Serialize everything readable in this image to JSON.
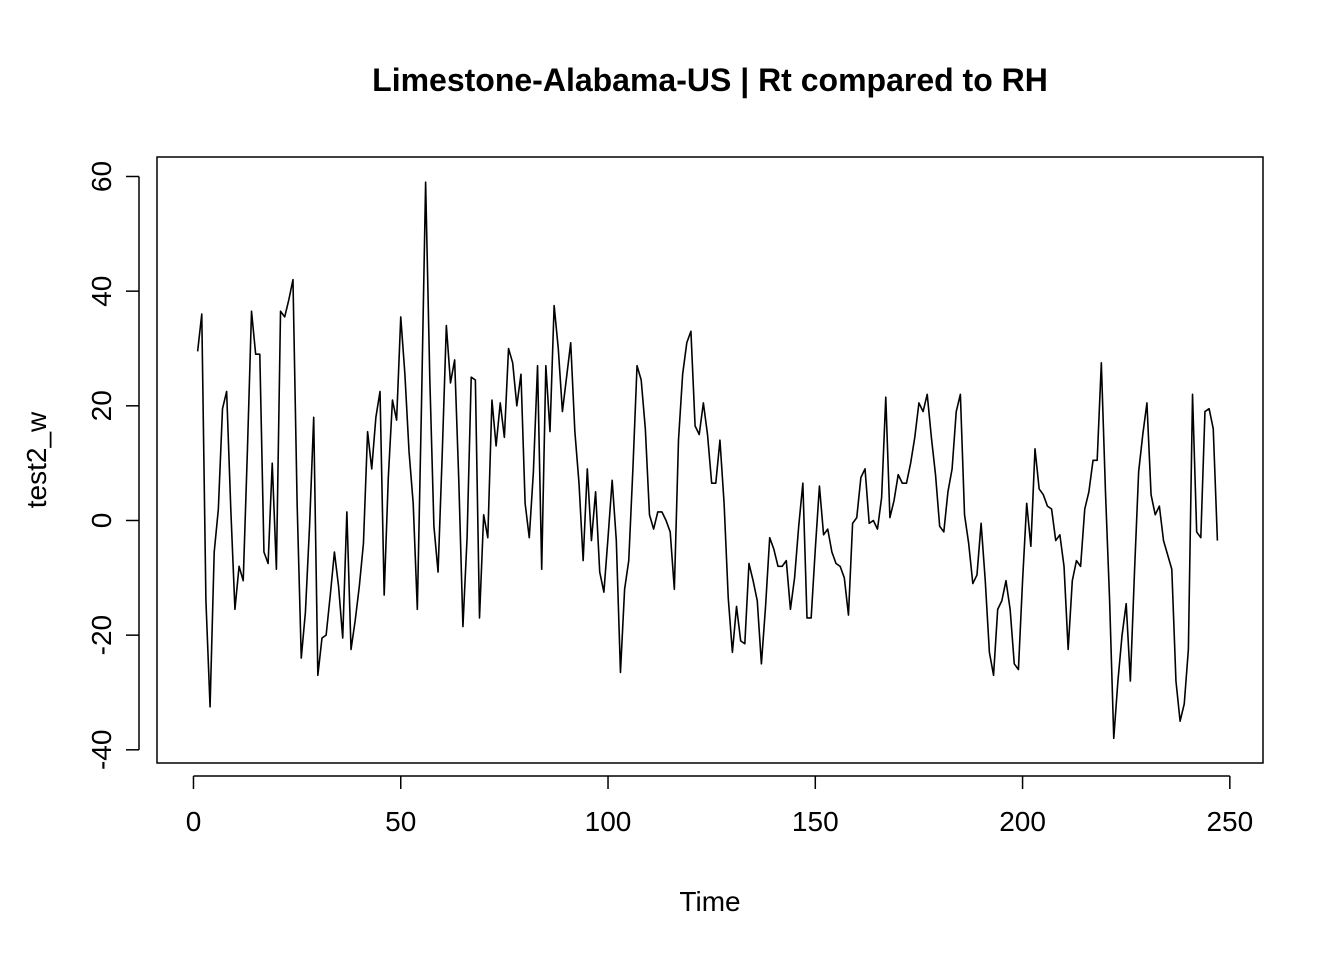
{
  "chart_data": {
    "type": "line",
    "title": "Limestone-Alabama-US | Rt compared to RH",
    "xlabel": "Time",
    "ylabel": "test2_w",
    "xlim": [
      -8.8,
      258
    ],
    "ylim": [
      -42.3,
      63.4
    ],
    "x_ticks": [
      0,
      50,
      100,
      150,
      200,
      250
    ],
    "y_ticks": [
      -40,
      -20,
      0,
      20,
      40,
      60
    ],
    "grid": false,
    "line_color": "#000000",
    "series": [
      {
        "x_start": 1,
        "values": [
          29.5,
          36,
          -14,
          -32.5,
          -5.5,
          2,
          19.5,
          22.5,
          2,
          -15.5,
          -8,
          -10.5,
          12,
          36.5,
          29,
          29,
          -5.5,
          -7.5,
          10,
          -8.5,
          36.5,
          35.5,
          38.5,
          42,
          3,
          -24,
          -16,
          -1,
          18,
          -27,
          -20.5,
          -20,
          -13,
          -5.5,
          -11.5,
          -20.5,
          1.5,
          -22.5,
          -17.5,
          -11.5,
          -4,
          15.5,
          9,
          18,
          22.5,
          -13,
          7.5,
          21,
          17.5,
          35.5,
          25.5,
          12,
          3,
          -15.5,
          20,
          59,
          25,
          -1,
          -9,
          11.5,
          34,
          24,
          28,
          7,
          -18.5,
          -3,
          25,
          24.5,
          -17,
          1,
          -3,
          21,
          13,
          20.5,
          14.5,
          30,
          27.5,
          20,
          25.5,
          3,
          -3,
          8.5,
          27,
          -8.5,
          27,
          15.5,
          37.5,
          30,
          19,
          25,
          31,
          15.5,
          6.5,
          -7,
          9,
          -3.5,
          5,
          -9,
          -12.5,
          -3,
          7,
          -3.5,
          -26.5,
          -12,
          -7,
          9,
          27,
          24.5,
          16,
          1,
          -1.5,
          1.5,
          1.5,
          0,
          -2,
          -12,
          14,
          25.5,
          31,
          33,
          16.5,
          15,
          20.5,
          15,
          6.5,
          6.5,
          14,
          3,
          -13.5,
          -23,
          -15,
          -21,
          -21.5,
          -7.5,
          -10.5,
          -14,
          -25,
          -15,
          -3,
          -5,
          -8,
          -8,
          -7,
          -15.5,
          -10,
          -1,
          6.5,
          -17,
          -17,
          -5,
          6,
          -2.5,
          -1.5,
          -5.5,
          -7.5,
          -8,
          -10,
          -16.5,
          -0.5,
          0.5,
          7.5,
          9,
          -0.5,
          0,
          -1.5,
          4,
          21.5,
          0.5,
          3.5,
          8,
          6.5,
          6.5,
          10,
          14.5,
          20.5,
          19,
          22,
          14.5,
          8,
          -1,
          -2,
          5,
          9,
          19,
          22,
          1,
          -4,
          -11,
          -9.5,
          -0.5,
          -10.5,
          -23,
          -27,
          -15.5,
          -14,
          -10.5,
          -15.5,
          -25,
          -26,
          -10.5,
          3,
          -4.5,
          12.5,
          5.5,
          4.5,
          2.5,
          2,
          -3.5,
          -2.5,
          -8,
          -22.5,
          -10.5,
          -7,
          -8,
          2,
          5,
          10.5,
          10.5,
          27.5,
          5,
          -14,
          -38,
          -28,
          -20,
          -14.5,
          -28,
          -9,
          8.5,
          15,
          20.5,
          4.5,
          1,
          2.5,
          -3.5,
          -6,
          -8.5,
          -28,
          -35,
          -32,
          -22.5,
          22,
          -2,
          -3,
          19,
          19.5,
          16,
          -3.5
        ]
      }
    ]
  }
}
